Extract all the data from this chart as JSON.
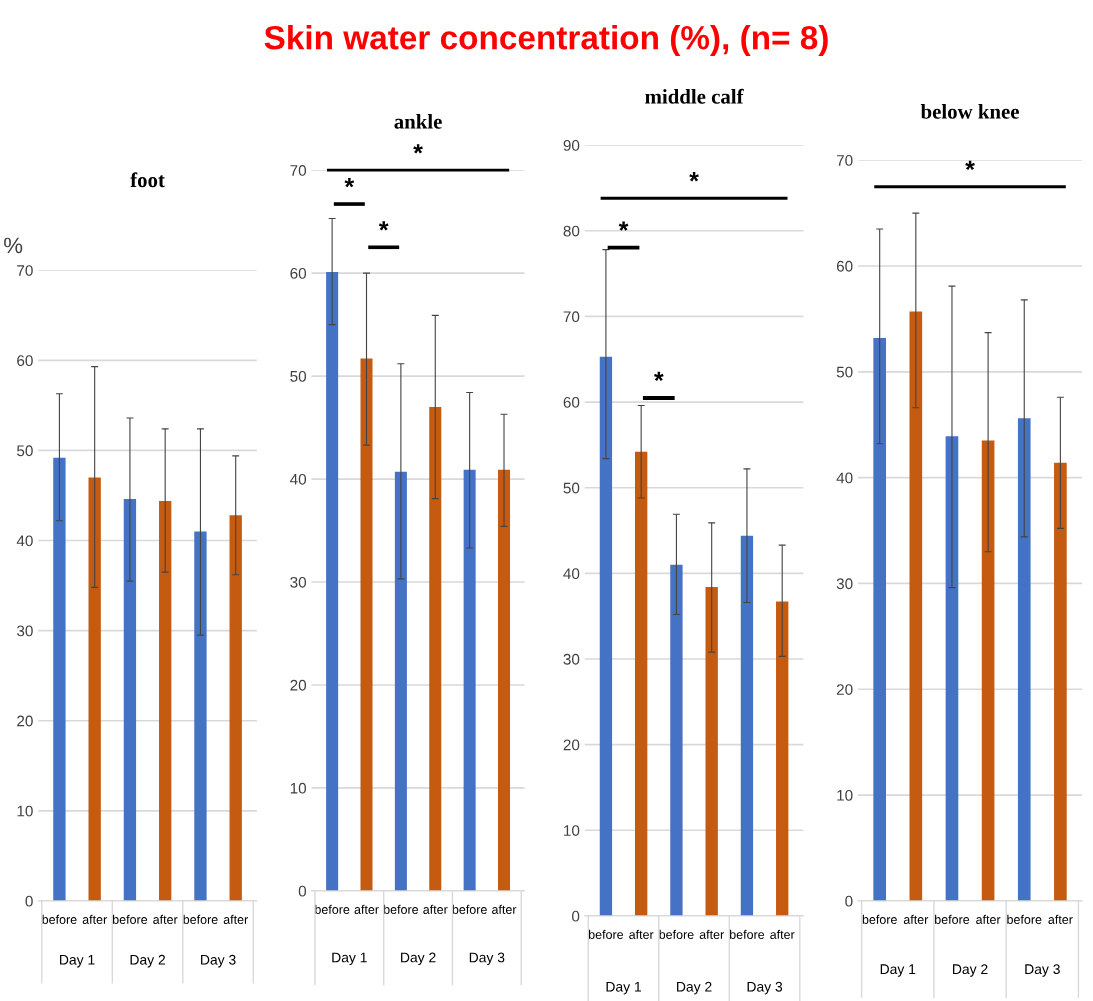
{
  "chart_data": [
    {
      "type": "bar",
      "title": "Skin water concentration (%), (n= 8)",
      "subtitle": "foot",
      "ylabel": "%",
      "categories": [
        "before",
        "after",
        "before",
        "after",
        "before",
        "after"
      ],
      "values": [
        49.2,
        47.0,
        44.6,
        44.4,
        41.0,
        42.8
      ],
      "colors": [
        "#4472c4",
        "#c55a11",
        "#4472c4",
        "#c55a11",
        "#4472c4",
        "#c55a11"
      ],
      "errors": [
        [
          42.2,
          56.3
        ],
        [
          34.8,
          59.3
        ],
        [
          35.5,
          53.6
        ],
        [
          36.5,
          52.4
        ],
        [
          29.5,
          52.4
        ],
        [
          36.2,
          49.4
        ]
      ],
      "ylim": [
        0,
        70
      ],
      "yticks": [
        0,
        10,
        20,
        30,
        40,
        50,
        60,
        70
      ],
      "grid": "y",
      "annotations": [
        "Day 1",
        "Day 2",
        "Day 3"
      ]
    },
    {
      "type": "bar",
      "title": "ankle",
      "categories": [
        "before",
        "after",
        "before",
        "after",
        "before",
        "after"
      ],
      "values": [
        60.1,
        51.7,
        40.7,
        47.0,
        40.9,
        40.9
      ],
      "colors": [
        "#4472c4",
        "#c55a11",
        "#4472c4",
        "#c55a11",
        "#4472c4",
        "#c55a11"
      ],
      "errors": [
        [
          55.0,
          65.3
        ],
        [
          43.3,
          60.0
        ],
        [
          30.3,
          51.2
        ],
        [
          38.1,
          55.9
        ],
        [
          33.3,
          48.4
        ],
        [
          35.4,
          46.3
        ]
      ],
      "ylim": [
        0,
        70
      ],
      "yticks": [
        0,
        10,
        20,
        30,
        40,
        50,
        60,
        70
      ],
      "grid": "y",
      "annotations": [
        "Day 1",
        "Day 2",
        "Day 3",
        "*",
        "*",
        "*"
      ]
    },
    {
      "type": "bar",
      "title": "middle calf",
      "categories": [
        "before",
        "after",
        "before",
        "after",
        "before",
        "after"
      ],
      "values": [
        65.3,
        54.2,
        41.0,
        38.4,
        44.4,
        36.7
      ],
      "colors": [
        "#4472c4",
        "#c55a11",
        "#4472c4",
        "#c55a11",
        "#4472c4",
        "#c55a11"
      ],
      "errors": [
        [
          53.4,
          77.8
        ],
        [
          48.8,
          59.6
        ],
        [
          35.2,
          46.9
        ],
        [
          30.8,
          45.9
        ],
        [
          36.6,
          52.2
        ],
        [
          30.3,
          43.3
        ]
      ],
      "ylim": [
        0,
        90
      ],
      "yticks": [
        0,
        10,
        20,
        30,
        40,
        50,
        60,
        70,
        80,
        90
      ],
      "grid": "y",
      "annotations": [
        "Day 1",
        "Day 2",
        "Day 3",
        "*",
        "*",
        "*"
      ]
    },
    {
      "type": "bar",
      "title": "below knee",
      "categories": [
        "before",
        "after",
        "before",
        "after",
        "before",
        "after"
      ],
      "values": [
        53.2,
        55.7,
        43.9,
        43.5,
        45.6,
        41.4
      ],
      "colors": [
        "#4472c4",
        "#c55a11",
        "#4472c4",
        "#c55a11",
        "#4472c4",
        "#c55a11"
      ],
      "errors": [
        [
          43.2,
          63.5
        ],
        [
          46.6,
          65.0
        ],
        [
          29.6,
          58.1
        ],
        [
          33.0,
          53.7
        ],
        [
          34.4,
          56.8
        ],
        [
          35.2,
          47.6
        ]
      ],
      "ylim": [
        0,
        70
      ],
      "yticks": [
        0,
        10,
        20,
        30,
        40,
        50,
        60,
        70
      ],
      "grid": "y",
      "annotations": [
        "Day 1",
        "Day 2",
        "Day 3",
        "*"
      ]
    }
  ]
}
